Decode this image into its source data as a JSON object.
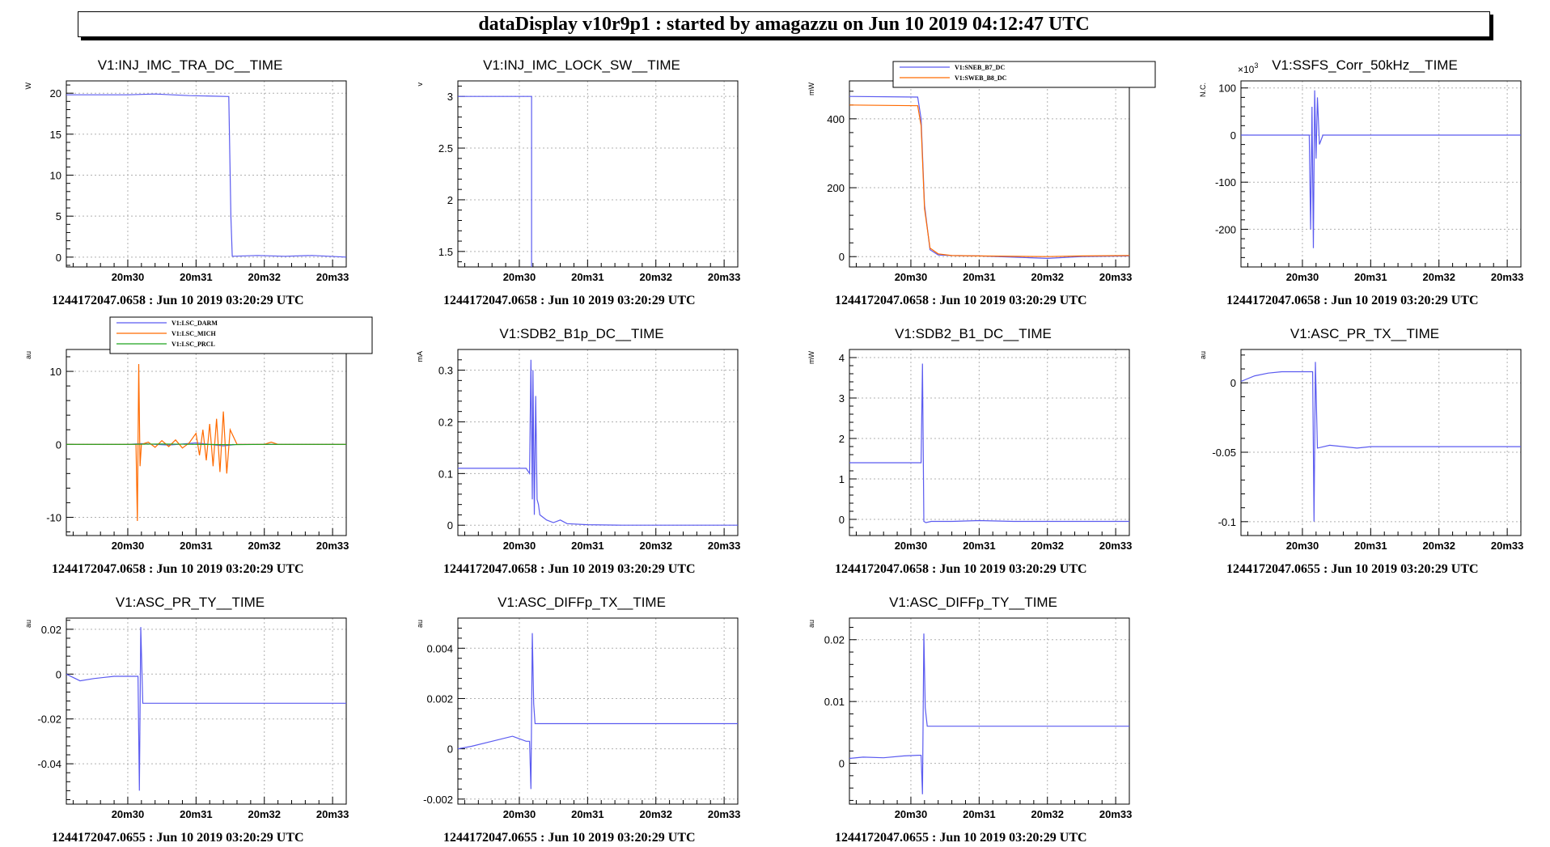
{
  "header": {
    "title": "dataDisplay v10r9p1 : started by amagazzu on Jun 10 2019 04:12:47 UTC"
  },
  "colors": {
    "blue": "#5b5bf0",
    "orange": "#ff6a00",
    "green": "#1fa51f"
  },
  "chart_data": [
    {
      "type": "line",
      "title": "V1:INJ_IMC_TRA_DC__TIME",
      "ylabel": "W",
      "xlim": [
        29.1,
        33.2
      ],
      "ylim": [
        -1.2,
        21.5
      ],
      "xticks": [
        30,
        31,
        32,
        33
      ],
      "xtick_labels": [
        "20m30",
        "20m31",
        "20m32",
        "20m33"
      ],
      "yticks": [
        0,
        5,
        10,
        15,
        20
      ],
      "ytick_labels": [
        "0",
        "5",
        "10",
        "15",
        "20"
      ],
      "legend": [],
      "series": [
        {
          "color": "blue",
          "x": [
            29.1,
            30.0,
            30.4,
            30.9,
            31.48,
            31.51,
            31.53,
            31.9,
            32.3,
            32.7,
            33.2
          ],
          "y": [
            19.8,
            19.8,
            19.9,
            19.7,
            19.6,
            5,
            0.1,
            0.2,
            0.1,
            0.2,
            0.0
          ]
        }
      ],
      "footer": "1244172047.0658 : Jun 10 2019 03:20:29 UTC"
    },
    {
      "type": "line",
      "title": "V1:INJ_IMC_LOCK_SW__TIME",
      "ylabel": "v",
      "xlim": [
        29.1,
        33.2
      ],
      "ylim": [
        1.35,
        3.15
      ],
      "xticks": [
        30,
        31,
        32,
        33
      ],
      "xtick_labels": [
        "20m30",
        "20m31",
        "20m32",
        "20m33"
      ],
      "yticks": [
        1.5,
        2,
        2.5,
        3
      ],
      "ytick_labels": [
        "1.5",
        "2",
        "2.5",
        "3"
      ],
      "legend": [],
      "series": [
        {
          "color": "blue",
          "x": [
            29.1,
            30.18,
            30.18
          ],
          "y": [
            3.0,
            3.0,
            1.35
          ]
        }
      ],
      "footer": "1244172047.0658 : Jun 10 2019 03:20:29 UTC"
    },
    {
      "type": "line",
      "title": "",
      "ylabel": "mW",
      "xlim": [
        29.1,
        33.2
      ],
      "ylim": [
        -30,
        510
      ],
      "xticks": [
        30,
        31,
        32,
        33
      ],
      "xtick_labels": [
        "20m30",
        "20m31",
        "20m32",
        "20m33"
      ],
      "yticks": [
        0,
        200,
        400
      ],
      "ytick_labels": [
        "0",
        "200",
        "400"
      ],
      "legend": [
        "V1:SNEB_B7_DC",
        "V1:SWEB_B8_DC"
      ],
      "series": [
        {
          "name": "V1:SNEB_B7_DC",
          "color": "blue",
          "x": [
            29.1,
            30.1,
            30.15,
            30.2,
            30.28,
            30.4,
            30.6,
            31.0,
            32.0,
            32.5,
            33.2
          ],
          "y": [
            465,
            463,
            400,
            150,
            20,
            5,
            3,
            2,
            -5,
            0,
            2
          ]
        },
        {
          "name": "V1:SWEB_B8_DC",
          "color": "orange",
          "x": [
            29.1,
            30.1,
            30.15,
            30.2,
            30.28,
            30.4,
            30.6,
            31.0,
            32.0,
            32.5,
            33.2
          ],
          "y": [
            440,
            438,
            380,
            140,
            25,
            8,
            3,
            2,
            0,
            2,
            3
          ]
        }
      ],
      "footer": "1244172047.0658 : Jun 10 2019 03:20:29 UTC"
    },
    {
      "type": "line",
      "title": "V1:SSFS_Corr_50kHz__TIME",
      "ylabel": "N.C.",
      "multiplier": "×10",
      "multiplier_exp": "3",
      "xlim": [
        29.1,
        33.2
      ],
      "ylim": [
        -280,
        115
      ],
      "xticks": [
        30,
        31,
        32,
        33
      ],
      "xtick_labels": [
        "20m30",
        "20m31",
        "20m32",
        "20m33"
      ],
      "yticks": [
        -200,
        -100,
        0,
        100
      ],
      "ytick_labels": [
        "-200",
        "-100",
        "0",
        "100"
      ],
      "legend": [],
      "series": [
        {
          "color": "blue",
          "x": [
            29.1,
            30.05,
            30.1,
            30.12,
            30.14,
            30.16,
            30.18,
            30.2,
            30.22,
            30.25,
            30.3,
            33.2
          ],
          "y": [
            0,
            0,
            0,
            -200,
            60,
            -240,
            95,
            -50,
            80,
            -20,
            0,
            0
          ]
        }
      ],
      "footer": "1244172047.0658 : Jun 10 2019 03:20:29 UTC"
    },
    {
      "type": "line",
      "title": "",
      "ylabel": "au",
      "xlim": [
        29.1,
        33.2
      ],
      "ylim": [
        -12.5,
        13
      ],
      "xticks": [
        30,
        31,
        32,
        33
      ],
      "xtick_labels": [
        "20m30",
        "20m31",
        "20m32",
        "20m33"
      ],
      "yticks": [
        -10,
        0,
        10
      ],
      "ytick_labels": [
        "-10",
        "0",
        "10"
      ],
      "legend": [
        "V1:LSC_DARM",
        "V1:LSC_MICH",
        "V1:LSC_PRCL"
      ],
      "series": [
        {
          "name": "V1:LSC_DARM",
          "color": "blue",
          "x": [
            29.1,
            30.0,
            30.2,
            30.6,
            31.0,
            31.4,
            31.6,
            32.0,
            33.2
          ],
          "y": [
            0,
            0,
            0.1,
            -0.1,
            0.2,
            -0.2,
            0,
            0,
            0
          ]
        },
        {
          "name": "V1:LSC_MICH",
          "color": "orange",
          "x": [
            29.1,
            30.0,
            30.12,
            30.14,
            30.16,
            30.18,
            30.2,
            30.3,
            30.4,
            30.5,
            30.6,
            30.7,
            30.8,
            30.9,
            31.0,
            31.05,
            31.1,
            31.15,
            31.2,
            31.25,
            31.3,
            31.35,
            31.4,
            31.45,
            31.5,
            31.6,
            32.0,
            32.1,
            32.2,
            33.2
          ],
          "y": [
            0,
            0,
            0,
            -10.5,
            11,
            -3,
            0,
            0.3,
            -0.4,
            0.5,
            -0.3,
            0.6,
            -0.5,
            0.2,
            1.5,
            -1.5,
            2,
            -2.2,
            2.8,
            -3,
            3.5,
            -3.8,
            4.5,
            -4,
            2,
            0,
            0,
            0.3,
            0,
            0
          ]
        },
        {
          "name": "V1:LSC_PRCL",
          "color": "green",
          "x": [
            29.1,
            30.0,
            30.5,
            31.0,
            31.5,
            32.0,
            33.2
          ],
          "y": [
            0,
            0,
            0.05,
            0,
            -0.05,
            0,
            0
          ]
        }
      ],
      "footer": "1244172047.0658 : Jun 10 2019 03:20:29 UTC"
    },
    {
      "type": "line",
      "title": "V1:SDB2_B1p_DC__TIME",
      "ylabel": "mA",
      "xlim": [
        29.1,
        33.2
      ],
      "ylim": [
        -0.02,
        0.34
      ],
      "xticks": [
        30,
        31,
        32,
        33
      ],
      "xtick_labels": [
        "20m30",
        "20m31",
        "20m32",
        "20m33"
      ],
      "yticks": [
        0,
        0.1,
        0.2,
        0.3
      ],
      "ytick_labels": [
        "0",
        "0.1",
        "0.2",
        "0.3"
      ],
      "legend": [],
      "series": [
        {
          "color": "blue",
          "x": [
            29.1,
            30.1,
            30.15,
            30.17,
            30.19,
            30.2,
            30.22,
            30.24,
            30.26,
            30.28,
            30.3,
            30.4,
            30.5,
            30.6,
            30.7,
            31.0,
            31.5,
            33.2
          ],
          "y": [
            0.11,
            0.11,
            0.1,
            0.32,
            0.05,
            0.3,
            0.02,
            0.25,
            0.05,
            0.04,
            0.02,
            0.01,
            0.005,
            0.01,
            0.003,
            0.001,
            0,
            0
          ]
        }
      ],
      "footer": "1244172047.0658 : Jun 10 2019 03:20:29 UTC"
    },
    {
      "type": "line",
      "title": "V1:SDB2_B1_DC__TIME",
      "ylabel": "mW",
      "xlim": [
        29.1,
        33.2
      ],
      "ylim": [
        -0.4,
        4.2
      ],
      "xticks": [
        30,
        31,
        32,
        33
      ],
      "xtick_labels": [
        "20m30",
        "20m31",
        "20m32",
        "20m33"
      ],
      "yticks": [
        0,
        1,
        2,
        3,
        4
      ],
      "ytick_labels": [
        "0",
        "1",
        "2",
        "3",
        "4"
      ],
      "legend": [],
      "series": [
        {
          "color": "blue",
          "x": [
            29.1,
            30.1,
            30.15,
            30.17,
            30.19,
            30.22,
            30.3,
            30.6,
            31.0,
            31.5,
            33.2
          ],
          "y": [
            1.4,
            1.4,
            1.4,
            3.85,
            -0.05,
            -0.08,
            -0.05,
            -0.05,
            -0.03,
            -0.05,
            -0.05
          ]
        }
      ],
      "footer": "1244172047.0658 : Jun 10 2019 03:20:29 UTC"
    },
    {
      "type": "line",
      "title": "V1:ASC_PR_TX__TIME",
      "ylabel": "au",
      "xlim": [
        29.1,
        33.2
      ],
      "ylim": [
        -0.11,
        0.024
      ],
      "xticks": [
        30,
        31,
        32,
        33
      ],
      "xtick_labels": [
        "20m30",
        "20m31",
        "20m32",
        "20m33"
      ],
      "yticks": [
        -0.1,
        -0.05,
        0
      ],
      "ytick_labels": [
        "-0.1",
        "-0.05",
        "0"
      ],
      "legend": [],
      "series": [
        {
          "color": "blue",
          "x": [
            29.1,
            29.3,
            29.5,
            29.7,
            30.0,
            30.15,
            30.17,
            30.19,
            30.22,
            30.4,
            30.6,
            30.8,
            31.0,
            31.5,
            33.2
          ],
          "y": [
            0.001,
            0.005,
            0.007,
            0.008,
            0.008,
            0.008,
            -0.1,
            0.015,
            -0.047,
            -0.045,
            -0.046,
            -0.047,
            -0.046,
            -0.046,
            -0.046
          ]
        }
      ],
      "footer": "1244172047.0655 : Jun 10 2019 03:20:29 UTC"
    },
    {
      "type": "line",
      "title": "V1:ASC_PR_TY__TIME",
      "ylabel": "au",
      "xlim": [
        29.1,
        33.2
      ],
      "ylim": [
        -0.058,
        0.025
      ],
      "xticks": [
        30,
        31,
        32,
        33
      ],
      "xtick_labels": [
        "20m30",
        "20m31",
        "20m32",
        "20m33"
      ],
      "yticks": [
        -0.04,
        -0.02,
        0,
        0.02
      ],
      "ytick_labels": [
        "-0.04",
        "-0.02",
        "0",
        "0.02"
      ],
      "legend": [],
      "series": [
        {
          "color": "blue",
          "x": [
            29.1,
            29.3,
            29.5,
            29.8,
            30.15,
            30.17,
            30.19,
            30.22,
            30.5,
            31.0,
            31.5,
            33.2
          ],
          "y": [
            0,
            -0.003,
            -0.002,
            -0.001,
            -0.001,
            -0.052,
            0.021,
            -0.013,
            -0.013,
            -0.013,
            -0.013,
            -0.013
          ]
        }
      ],
      "footer": "1244172047.0655 : Jun 10 2019 03:20:29 UTC"
    },
    {
      "type": "line",
      "title": "V1:ASC_DIFFp_TX__TIME",
      "ylabel": "au",
      "xlim": [
        29.1,
        33.2
      ],
      "ylim": [
        -0.0022,
        0.0052
      ],
      "xticks": [
        30,
        31,
        32,
        33
      ],
      "xtick_labels": [
        "20m30",
        "20m31",
        "20m32",
        "20m33"
      ],
      "yticks": [
        -0.002,
        0,
        0.002,
        0.004
      ],
      "ytick_labels": [
        "-0.002",
        "0",
        "0.002",
        "0.004"
      ],
      "legend": [],
      "series": [
        {
          "color": "blue",
          "x": [
            29.1,
            29.3,
            29.6,
            29.9,
            30.1,
            30.15,
            30.17,
            30.19,
            30.21,
            30.23,
            30.5,
            31.0,
            33.2
          ],
          "y": [
            0,
            0.0001,
            0.0003,
            0.0005,
            0.0003,
            0.0003,
            -0.0016,
            0.0046,
            0.0018,
            0.001,
            0.001,
            0.001,
            0.001
          ]
        }
      ],
      "footer": "1244172047.0655 : Jun 10 2019 03:20:29 UTC"
    },
    {
      "type": "line",
      "title": "V1:ASC_DIFFp_TY__TIME",
      "ylabel": "au",
      "xlim": [
        29.1,
        33.2
      ],
      "ylim": [
        -0.0066,
        0.0235
      ],
      "xticks": [
        30,
        31,
        32,
        33
      ],
      "xtick_labels": [
        "20m30",
        "20m31",
        "20m32",
        "20m33"
      ],
      "yticks": [
        0,
        0.01,
        0.02
      ],
      "ytick_labels": [
        "0",
        "0.01",
        "0.02"
      ],
      "legend": [],
      "series": [
        {
          "color": "blue",
          "x": [
            29.1,
            29.3,
            29.6,
            29.9,
            30.1,
            30.15,
            30.17,
            30.19,
            30.21,
            30.24,
            30.5,
            31.0,
            33.2
          ],
          "y": [
            0.0008,
            0.001,
            0.0009,
            0.0012,
            0.0013,
            0.0013,
            -0.005,
            0.021,
            0.009,
            0.006,
            0.006,
            0.006,
            0.006
          ]
        }
      ],
      "footer": "1244172047.0655 : Jun 10 2019 03:20:29 UTC"
    }
  ]
}
